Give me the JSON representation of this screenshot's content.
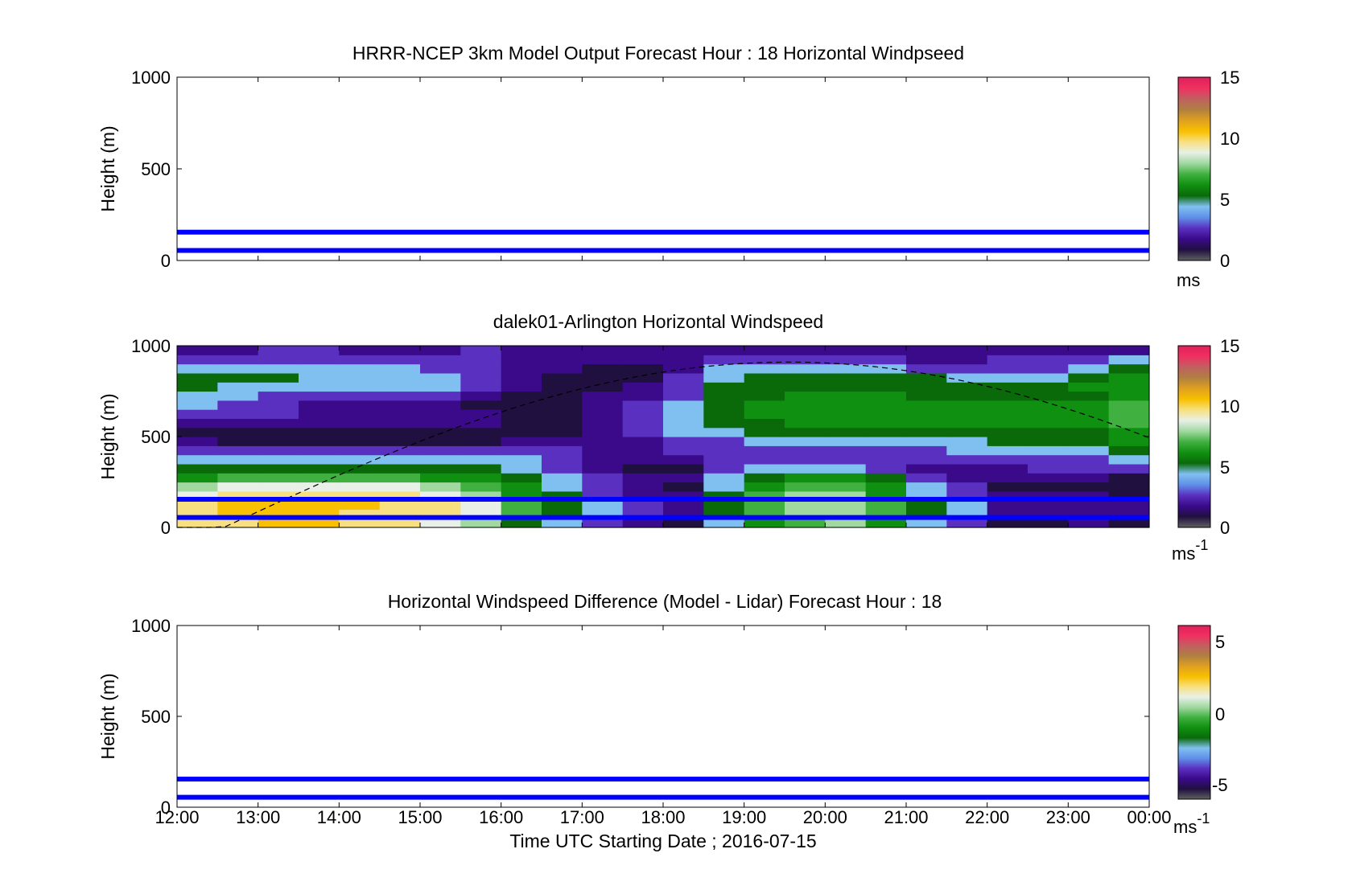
{
  "figure": {
    "xlabel": "Time UTC  Starting Date ; 2016-07-15",
    "x_tick_labels": [
      "12:00",
      "13:00",
      "14:00",
      "15:00",
      "16:00",
      "17:00",
      "18:00",
      "19:00",
      "20:00",
      "21:00",
      "22:00",
      "23:00",
      "00:00"
    ]
  },
  "colors": {
    "reference_line": "#0000ff",
    "colormap": [
      "#606060",
      "#201040",
      "#3a0a8a",
      "#5a30c0",
      "#6090e8",
      "#80c0f0",
      "#0a6a0a",
      "#109010",
      "#40b040",
      "#a0d8a0",
      "#e8f0e8",
      "#f8e080",
      "#f8c000",
      "#e0a020",
      "#b08040",
      "#c06060",
      "#f03060",
      "#e0205a"
    ]
  },
  "chart_data": [
    {
      "type": "heatmap",
      "title": "HRRR-NCEP 3km Model Output   Forecast Hour : 18 Horizontal Windpseed",
      "ylabel": "Height (m)",
      "y_ticks": [
        "0",
        "500",
        "1000"
      ],
      "ylim": [
        0,
        1000
      ],
      "colorbar": {
        "label": "ms",
        "label_sup": "",
        "ticks": [
          "0",
          "5",
          "10",
          "15"
        ],
        "range": [
          0,
          15
        ]
      },
      "reference_lines_m": [
        55,
        155
      ],
      "values": []
    },
    {
      "type": "heatmap",
      "title": "dalek01-Arlington  Horizontal Windspeed",
      "ylabel": "Height (m)",
      "y_ticks": [
        "0",
        "500",
        "1000"
      ],
      "ylim": [
        0,
        1000
      ],
      "colorbar": {
        "label": "ms",
        "label_sup": "-1",
        "ticks": [
          "0",
          "5",
          "10",
          "15"
        ],
        "range": [
          0,
          15
        ]
      },
      "reference_lines_m": [
        55,
        155
      ],
      "height_bins_m": [
        25,
        75,
        125,
        175,
        225,
        275,
        325,
        375,
        425,
        475,
        525,
        575,
        625,
        675,
        725,
        775,
        825,
        875,
        925,
        975
      ],
      "times_utc": [
        "12:00",
        "12:30",
        "13:00",
        "13:30",
        "14:00",
        "14:30",
        "15:00",
        "15:30",
        "16:00",
        "16:30",
        "17:00",
        "17:30",
        "18:00",
        "18:30",
        "19:00",
        "19:30",
        "20:00",
        "20:30",
        "21:00",
        "21:30",
        "22:00",
        "22:30",
        "23:00",
        "23:30"
      ],
      "values": [
        [
          10,
          10,
          11,
          11,
          10,
          10,
          9,
          8,
          5,
          4,
          3,
          2,
          1,
          4,
          6,
          7,
          8,
          6,
          4,
          3,
          1,
          1,
          2,
          1
        ],
        [
          10,
          11,
          11,
          11,
          10,
          10,
          10,
          9,
          7,
          5,
          4,
          3,
          2,
          5,
          7,
          8,
          8,
          7,
          5,
          4,
          2,
          2,
          2,
          2
        ],
        [
          10,
          11,
          11,
          11,
          11,
          10,
          10,
          9,
          7,
          5,
          4,
          3,
          2,
          5,
          7,
          8,
          8,
          7,
          5,
          4,
          2,
          2,
          2,
          2
        ],
        [
          9,
          10,
          10,
          10,
          10,
          10,
          9,
          8,
          6,
          5,
          3,
          2,
          2,
          5,
          7,
          8,
          8,
          6,
          4,
          3,
          2,
          2,
          2,
          1
        ],
        [
          8,
          9,
          9,
          9,
          9,
          9,
          8,
          7,
          6,
          4,
          3,
          2,
          1,
          4,
          6,
          7,
          7,
          6,
          4,
          3,
          1,
          1,
          1,
          1
        ],
        [
          6,
          7,
          7,
          7,
          7,
          7,
          6,
          6,
          5,
          4,
          3,
          2,
          2,
          4,
          5,
          6,
          6,
          5,
          3,
          2,
          2,
          2,
          2,
          1
        ],
        [
          5,
          5,
          5,
          5,
          5,
          5,
          5,
          5,
          4,
          3,
          2,
          1,
          1,
          3,
          4,
          4,
          4,
          3,
          2,
          2,
          2,
          3,
          3,
          3
        ],
        [
          4,
          4,
          4,
          4,
          4,
          4,
          4,
          4,
          4,
          3,
          2,
          2,
          2,
          3,
          3,
          3,
          3,
          3,
          3,
          3,
          3,
          3,
          3,
          4
        ],
        [
          3,
          3,
          3,
          3,
          3,
          3,
          3,
          3,
          3,
          3,
          2,
          2,
          3,
          3,
          3,
          3,
          3,
          3,
          3,
          4,
          4,
          4,
          4,
          5
        ],
        [
          2,
          1,
          1,
          1,
          1,
          1,
          1,
          1,
          2,
          2,
          2,
          2,
          3,
          3,
          4,
          4,
          4,
          4,
          4,
          4,
          5,
          5,
          5,
          6
        ],
        [
          1,
          1,
          1,
          1,
          1,
          1,
          1,
          1,
          1,
          1,
          2,
          3,
          4,
          4,
          5,
          5,
          5,
          5,
          5,
          5,
          5,
          5,
          5,
          6
        ],
        [
          2,
          2,
          2,
          2,
          2,
          2,
          2,
          2,
          1,
          1,
          2,
          3,
          4,
          5,
          5,
          6,
          6,
          6,
          6,
          6,
          6,
          6,
          6,
          7
        ],
        [
          3,
          3,
          3,
          2,
          2,
          2,
          2,
          2,
          1,
          1,
          2,
          3,
          4,
          5,
          6,
          6,
          6,
          6,
          6,
          6,
          6,
          6,
          6,
          7
        ],
        [
          4,
          3,
          3,
          2,
          2,
          2,
          2,
          1,
          1,
          1,
          2,
          3,
          4,
          5,
          6,
          6,
          6,
          6,
          6,
          6,
          6,
          6,
          6,
          7
        ],
        [
          4,
          4,
          3,
          3,
          3,
          3,
          3,
          2,
          1,
          1,
          2,
          2,
          3,
          5,
          5,
          6,
          6,
          6,
          5,
          5,
          5,
          5,
          5,
          6
        ],
        [
          5,
          4,
          4,
          4,
          4,
          4,
          4,
          3,
          2,
          1,
          1,
          2,
          3,
          5,
          5,
          5,
          5,
          5,
          5,
          5,
          5,
          5,
          6,
          6
        ],
        [
          5,
          5,
          5,
          4,
          4,
          4,
          4,
          3,
          2,
          1,
          1,
          1,
          3,
          4,
          5,
          5,
          5,
          5,
          5,
          4,
          4,
          4,
          5,
          6
        ],
        [
          4,
          4,
          4,
          4,
          4,
          4,
          3,
          3,
          2,
          2,
          1,
          1,
          2,
          4,
          4,
          4,
          4,
          4,
          3,
          3,
          3,
          3,
          4,
          5
        ],
        [
          3,
          3,
          3,
          3,
          3,
          3,
          3,
          3,
          2,
          2,
          2,
          2,
          2,
          3,
          3,
          3,
          3,
          3,
          2,
          2,
          3,
          3,
          3,
          4
        ],
        [
          2,
          2,
          3,
          3,
          2,
          2,
          2,
          3,
          2,
          2,
          2,
          2,
          2,
          2,
          2,
          2,
          2,
          2,
          2,
          2,
          2,
          2,
          2,
          2
        ]
      ],
      "overlay_line": "dashed boundary-layer height curve"
    },
    {
      "type": "heatmap",
      "title": "Horizontal Windspeed Difference (Model - Lidar) Forecast Hour : 18",
      "ylabel": "Height (m)",
      "y_ticks": [
        "0",
        "500",
        "1000"
      ],
      "ylim": [
        0,
        1000
      ],
      "colorbar": {
        "label": "ms",
        "label_sup": "-1",
        "ticks": [
          "-5",
          "0",
          "5"
        ],
        "range": [
          -6,
          6
        ]
      },
      "reference_lines_m": [
        55,
        155
      ],
      "values": []
    }
  ]
}
